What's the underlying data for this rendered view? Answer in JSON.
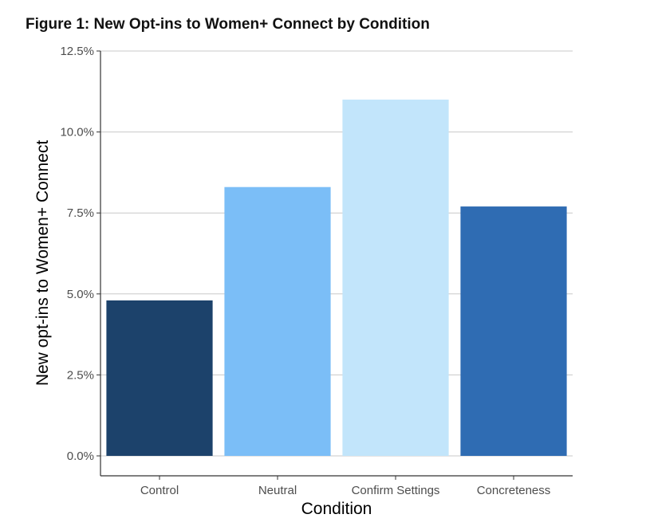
{
  "figure_title": "Figure 1: New Opt-ins to Women+ Connect by Condition",
  "chart_data": {
    "type": "bar",
    "title": "Figure 1: New Opt-ins to Women+ Connect by Condition",
    "xlabel": "Condition",
    "ylabel": "New opt-ins to Women+ Connect",
    "categories": [
      "Control",
      "Neutral",
      "Confirm Settings",
      "Concreteness"
    ],
    "values": [
      4.8,
      8.3,
      11.0,
      7.7
    ],
    "value_unit": "%",
    "ylim": [
      0,
      12.5
    ],
    "yticks": [
      0,
      2.5,
      5,
      7.5,
      10,
      12.5
    ],
    "ytick_labels": [
      "0.0%",
      "2.5%",
      "5.0%",
      "7.5%",
      "10.0%",
      "12.5%"
    ],
    "colors": [
      "#1c426b",
      "#7bbef7",
      "#c2e5fb",
      "#2f6cb3"
    ],
    "grid": "horizontal major",
    "gridline_color": "#c8c8c8",
    "legend": "none"
  }
}
